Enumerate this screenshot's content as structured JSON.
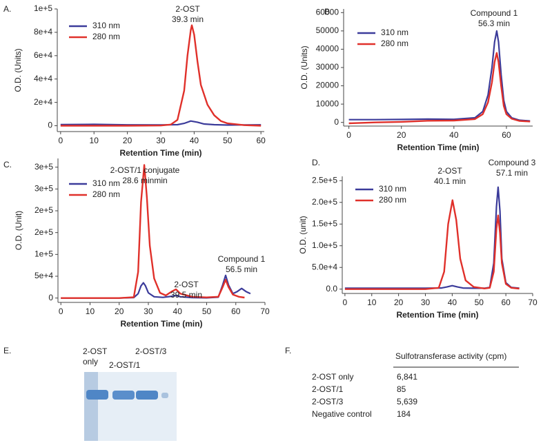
{
  "chart_data": [
    {
      "type": "line",
      "panel_label": "A.",
      "x_label": "Retention Time (min)",
      "y_label": "O.D. (Units)",
      "xlim": [
        -1,
        61
      ],
      "xticks": [
        0,
        10,
        20,
        30,
        40,
        50,
        60
      ],
      "ylim": [
        -5000,
        100000
      ],
      "yticks": [
        0,
        {
          "value": 20000,
          "label": "2e+4"
        },
        {
          "value": 40000,
          "label": "4e+4"
        },
        {
          "value": 60000,
          "label": "6e+4"
        },
        {
          "value": 80000,
          "label": "8e+4"
        },
        {
          "value": 100000,
          "label": "1e+5"
        }
      ],
      "legend": "top-left",
      "annotations": [
        {
          "lines": [
            "2-OST",
            "39.3 min"
          ]
        }
      ],
      "series": [
        {
          "name": "310 nm",
          "color": "#3b3b9a",
          "x": [
            0,
            10,
            20,
            30,
            35,
            37,
            39,
            41,
            43,
            46,
            50,
            55,
            60
          ],
          "values": [
            1000,
            1200,
            800,
            700,
            900,
            2000,
            4000,
            3000,
            1500,
            900,
            600,
            700,
            800
          ]
        },
        {
          "name": "280 nm",
          "color": "#e0302a",
          "x": [
            0,
            10,
            20,
            30,
            33,
            35,
            37,
            38,
            39,
            39.3,
            40,
            41,
            42,
            44,
            46,
            48,
            50,
            55,
            60
          ],
          "values": [
            0,
            0,
            0,
            200,
            1000,
            5000,
            30000,
            60000,
            82000,
            86000,
            78000,
            55000,
            35000,
            18000,
            9000,
            4000,
            2000,
            500,
            0
          ]
        }
      ]
    },
    {
      "type": "line",
      "panel_label": "B.",
      "x_label": "Retention Time (min)",
      "y_label": "O.D. (Units)",
      "xlim": [
        -2,
        70
      ],
      "xticks": [
        0,
        20,
        40,
        60
      ],
      "ylim": [
        -2000,
        62000
      ],
      "yticks": [
        0,
        10000,
        20000,
        30000,
        40000,
        50000,
        60000
      ],
      "legend": "left",
      "annotations": [
        {
          "lines": [
            "Compound 1",
            "56.3 min"
          ]
        }
      ],
      "series": [
        {
          "name": "310 nm",
          "color": "#3b3b9a",
          "x": [
            0,
            10,
            20,
            30,
            40,
            48,
            51,
            53,
            54.5,
            55.5,
            56.3,
            57,
            58,
            59,
            60,
            62,
            65,
            69
          ],
          "values": [
            1500,
            1500,
            1600,
            1800,
            1700,
            2500,
            6000,
            15000,
            30000,
            44000,
            50000,
            44000,
            26000,
            12000,
            6000,
            2500,
            1200,
            800
          ]
        },
        {
          "name": "280 nm",
          "color": "#e0302a",
          "x": [
            0,
            10,
            20,
            30,
            40,
            48,
            51,
            53,
            54.5,
            55.5,
            56.3,
            57,
            58,
            59,
            60,
            62,
            65,
            69
          ],
          "values": [
            -500,
            0,
            300,
            900,
            1000,
            1800,
            4500,
            11000,
            22000,
            33000,
            38000,
            33000,
            20000,
            9000,
            4500,
            2000,
            800,
            500
          ]
        }
      ]
    },
    {
      "type": "line",
      "panel_label": "C.",
      "x_label": "Retention Time (min)",
      "y_label": "O.D. (Unit)",
      "xlim": [
        -1,
        70
      ],
      "xticks": [
        0,
        10,
        20,
        30,
        40,
        50,
        60,
        70
      ],
      "ylim": [
        -10000,
        320000
      ],
      "yticks": [
        0,
        {
          "value": 50000,
          "label": "5e+4"
        },
        {
          "value": 100000,
          "label": "1e+5"
        },
        {
          "value": 150000,
          "label": "2e+5"
        },
        {
          "value": 200000,
          "label": "2e+5"
        },
        {
          "value": 250000,
          "label": "3e+5"
        },
        {
          "value": 300000,
          "label": "3e+5"
        }
      ],
      "legend": "left",
      "annotations": [
        {
          "lines": [
            "2-OST/1 conjugate",
            "28.6 minmin"
          ]
        },
        {
          "lines": [
            "2-OST",
            "39.5 min"
          ]
        },
        {
          "lines": [
            "Compound 1",
            "56.5 min"
          ]
        }
      ],
      "series": [
        {
          "name": "310 nm",
          "color": "#3b3b9a",
          "x": [
            0,
            10,
            20,
            25,
            26.5,
            27.5,
            28.3,
            29,
            30,
            32,
            35,
            38,
            39.5,
            41,
            45,
            50,
            54,
            55.5,
            56.5,
            57.5,
            59,
            60.5,
            62,
            63.5,
            65
          ],
          "values": [
            0,
            0,
            0,
            1000,
            10000,
            28000,
            35000,
            28000,
            12000,
            3000,
            1500,
            4000,
            6000,
            3000,
            1000,
            500,
            2000,
            30000,
            52000,
            30000,
            10000,
            15000,
            22000,
            15000,
            10000
          ]
        },
        {
          "name": "280 nm",
          "color": "#e0302a",
          "x": [
            0,
            10,
            20,
            25,
            26.5,
            27.5,
            28.6,
            29.5,
            30.5,
            32,
            34,
            36,
            38,
            39.5,
            41,
            45,
            50,
            54,
            55.5,
            56.5,
            57.5,
            59,
            61,
            63
          ],
          "values": [
            0,
            0,
            0,
            2000,
            60000,
            220000,
            305000,
            230000,
            120000,
            45000,
            12000,
            6000,
            15000,
            20000,
            10000,
            3000,
            1500,
            3000,
            25000,
            42000,
            25000,
            8000,
            3000,
            1000
          ]
        }
      ]
    },
    {
      "type": "line",
      "panel_label": "D.",
      "x_label": "Retention Time (min)",
      "y_label": "O.D. (unit)",
      "xlim": [
        -1,
        70
      ],
      "xticks": [
        0,
        10,
        20,
        30,
        40,
        50,
        60,
        70
      ],
      "ylim": [
        -10000,
        260000
      ],
      "yticks": [
        {
          "value": 0,
          "label": "0.0"
        },
        {
          "value": 50000,
          "label": "5.0e+4"
        },
        {
          "value": 100000,
          "label": "1.0e+5"
        },
        {
          "value": 150000,
          "label": "1.5e+5"
        },
        {
          "value": 200000,
          "label": "2.0e+5"
        },
        {
          "value": 250000,
          "label": "2.5e+5"
        }
      ],
      "legend": "left",
      "annotations": [
        {
          "lines": [
            "2-OST",
            "40.1 min"
          ]
        },
        {
          "lines": [
            "Compound 3",
            "57.1 min"
          ]
        }
      ],
      "series": [
        {
          "name": "310 nm",
          "color": "#3b3b9a",
          "x": [
            0,
            10,
            20,
            30,
            36,
            38,
            40,
            42,
            44,
            48,
            52,
            54,
            55.5,
            56.5,
            57.1,
            57.8,
            58.5,
            60,
            62,
            65
          ],
          "values": [
            2000,
            2000,
            2000,
            2000,
            2500,
            5000,
            8000,
            5000,
            2500,
            2000,
            2000,
            4000,
            60000,
            190000,
            235000,
            180000,
            70000,
            15000,
            4000,
            2000
          ]
        },
        {
          "name": "280 nm",
          "color": "#e0302a",
          "x": [
            0,
            10,
            20,
            30,
            35,
            37,
            38.5,
            40.1,
            41.5,
            43,
            45,
            48,
            52,
            54,
            55.5,
            56.5,
            57.1,
            57.8,
            58.5,
            60,
            62,
            65
          ],
          "values": [
            0,
            0,
            0,
            0,
            3000,
            40000,
            150000,
            205000,
            160000,
            70000,
            20000,
            5000,
            1500,
            3000,
            40000,
            140000,
            170000,
            130000,
            60000,
            12000,
            3000,
            1000
          ]
        }
      ]
    }
  ],
  "panel_e": {
    "label": "E.",
    "lanes": [
      [
        "2-OST",
        "only"
      ],
      [
        "2-OST/1"
      ],
      [
        "2-OST/3"
      ]
    ]
  },
  "panel_f": {
    "label": "F.",
    "header": "Sulfotransferase activity (cpm)",
    "rows": [
      [
        "2-OST only",
        "6,841"
      ],
      [
        "2-OST/1",
        "85"
      ],
      [
        "2-OST/3",
        "5,639"
      ],
      [
        "Negative control",
        "184"
      ]
    ]
  }
}
